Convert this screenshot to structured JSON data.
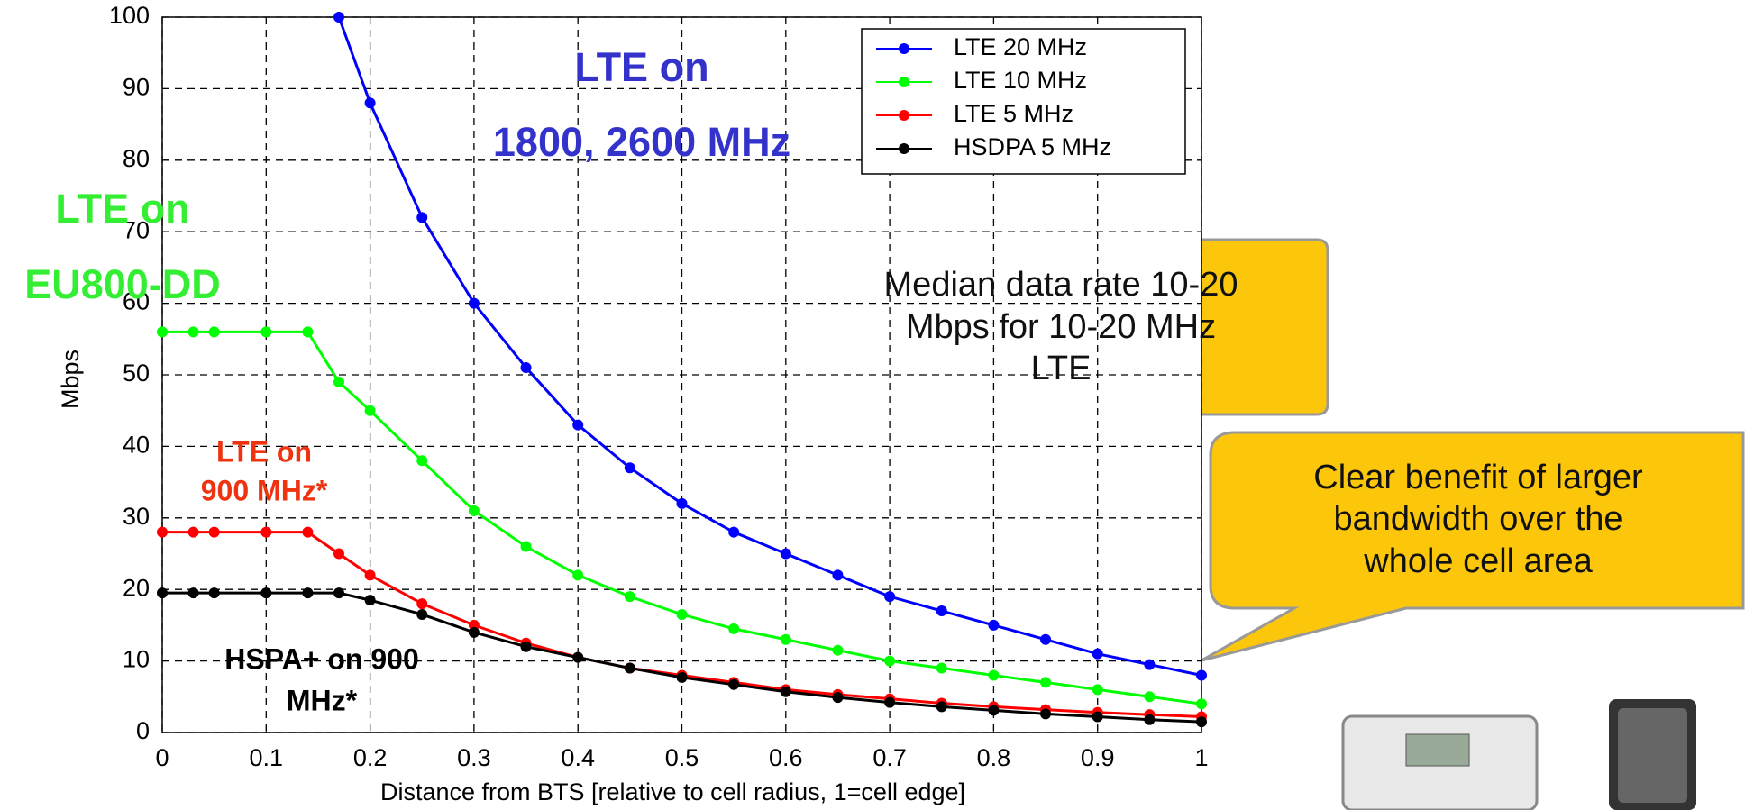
{
  "chart_data": {
    "type": "line",
    "xlabel": "Distance from BTS [relative to cell radius, 1=cell edge]",
    "ylabel": "Mbps",
    "x": [
      0,
      0.03,
      0.05,
      0.1,
      0.14,
      0.17,
      0.2,
      0.25,
      0.3,
      0.35,
      0.4,
      0.45,
      0.5,
      0.55,
      0.6,
      0.65,
      0.7,
      0.75,
      0.8,
      0.85,
      0.9,
      0.95,
      1
    ],
    "series": [
      {
        "name": "LTE 20 MHz",
        "color": "#0000ff",
        "values": [
          null,
          null,
          null,
          null,
          null,
          100,
          88,
          72,
          60,
          51,
          43,
          37,
          32,
          28,
          25,
          22,
          19,
          17,
          15,
          13,
          11,
          9.5,
          8
        ]
      },
      {
        "name": "LTE 10 MHz",
        "color": "#00ff00",
        "values": [
          56,
          56,
          56,
          56,
          56,
          49,
          45,
          38,
          31,
          26,
          22,
          19,
          16.5,
          14.5,
          13,
          11.5,
          10,
          9,
          8,
          7,
          6,
          5,
          4
        ]
      },
      {
        "name": "LTE 5 MHz",
        "color": "#ff0000",
        "values": [
          28,
          28,
          28,
          28,
          28,
          25,
          22,
          18,
          15,
          12.5,
          10.5,
          9,
          8,
          7,
          6,
          5.3,
          4.7,
          4.1,
          3.6,
          3.2,
          2.8,
          2.5,
          2.2
        ]
      },
      {
        "name": "HSDPA 5 MHz",
        "color": "#000000",
        "values": [
          19.5,
          19.5,
          19.5,
          19.5,
          19.5,
          19.5,
          18.5,
          16.5,
          14,
          12,
          10.5,
          9,
          7.7,
          6.7,
          5.7,
          4.9,
          4.2,
          3.6,
          3.1,
          2.6,
          2.2,
          1.8,
          1.5
        ]
      }
    ],
    "xlim": [
      0,
      1
    ],
    "xticks": [
      0,
      0.1,
      0.2,
      0.3,
      0.4,
      0.5,
      0.6,
      0.7,
      0.8,
      0.9,
      1
    ],
    "ylim": [
      0,
      100
    ],
    "yticks": [
      0,
      10,
      20,
      30,
      40,
      50,
      60,
      70,
      80,
      90,
      100
    ],
    "grid": true,
    "legend": "upper right",
    "annotations": [
      {
        "lines": [
          "LTE on",
          "1800, 2600 MHz"
        ],
        "color": "#3333cc"
      },
      {
        "lines": [
          "LTE on",
          "EU800-DD"
        ],
        "color": "#33ee33"
      },
      {
        "lines": [
          "LTE on",
          "900 MHz*"
        ],
        "color": "#ee3311"
      },
      {
        "lines": [
          "HSPA+ on 900",
          "MHz*"
        ],
        "color": "#000000"
      }
    ],
    "callouts": [
      {
        "lines": [
          "Median data rate 10-20",
          "Mbps for 10-20 MHz",
          "LTE"
        ]
      },
      {
        "lines": [
          "Clear benefit of larger",
          "bandwidth over the",
          "whole cell area"
        ]
      }
    ]
  }
}
